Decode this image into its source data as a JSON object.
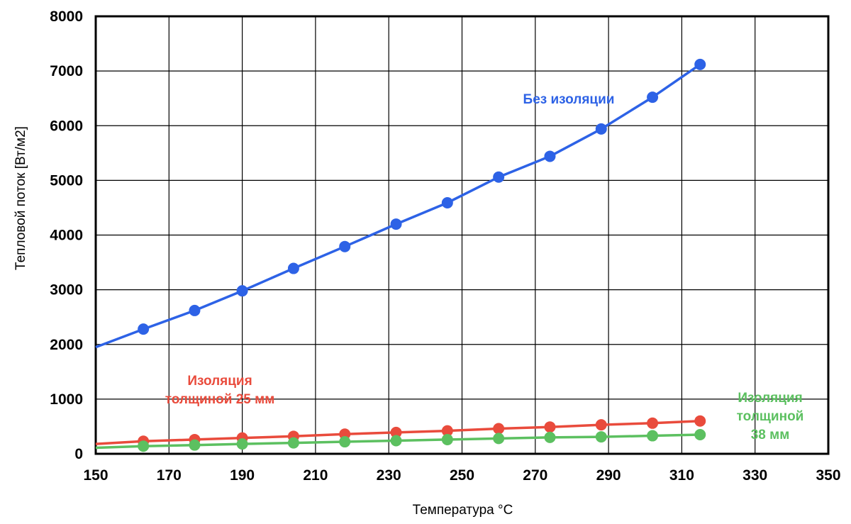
{
  "chart_data": {
    "type": "line",
    "title": "",
    "xlabel": "Температура °C",
    "ylabel": "Тепловой поток [Вт/м2]",
    "xlim": [
      150,
      350
    ],
    "ylim": [
      0,
      8000
    ],
    "x_ticks": [
      "150",
      "170",
      "190",
      "210",
      "230",
      "250",
      "270",
      "290",
      "310",
      "330",
      "350"
    ],
    "y_ticks": [
      "0",
      "1000",
      "2000",
      "3000",
      "4000",
      "5000",
      "6000",
      "7000",
      "8000"
    ],
    "grid": true,
    "series": [
      {
        "name": "Без изоляции",
        "label_lines": [
          "Без изоляции"
        ],
        "color": "#2d62e6",
        "line_start": {
          "x": 150,
          "y": 1950
        },
        "x": [
          163,
          177,
          190,
          204,
          218,
          232,
          246,
          260,
          274,
          288,
          302,
          315
        ],
        "y": [
          2280,
          2620,
          2980,
          3390,
          3790,
          4200,
          4590,
          5060,
          5440,
          5940,
          6520,
          7120
        ]
      },
      {
        "name": "Изоляция толщиной 25 мм",
        "label_lines": [
          "Изоляция",
          "толщиной 25 мм"
        ],
        "color": "#e94b3c",
        "line_start": {
          "x": 150,
          "y": 180
        },
        "x": [
          163,
          177,
          190,
          204,
          218,
          232,
          246,
          260,
          274,
          288,
          302,
          315
        ],
        "y": [
          230,
          260,
          290,
          320,
          360,
          390,
          420,
          460,
          490,
          530,
          560,
          600
        ]
      },
      {
        "name": "Изоляция толщиной 38 мм",
        "label_lines": [
          "Изоляция",
          "толщиной",
          "38 мм"
        ],
        "color": "#5cc060",
        "line_start": {
          "x": 150,
          "y": 110
        },
        "x": [
          163,
          177,
          190,
          204,
          218,
          232,
          246,
          260,
          274,
          288,
          302,
          315
        ],
        "y": [
          140,
          160,
          180,
          200,
          220,
          240,
          260,
          280,
          300,
          310,
          330,
          350
        ]
      }
    ]
  }
}
